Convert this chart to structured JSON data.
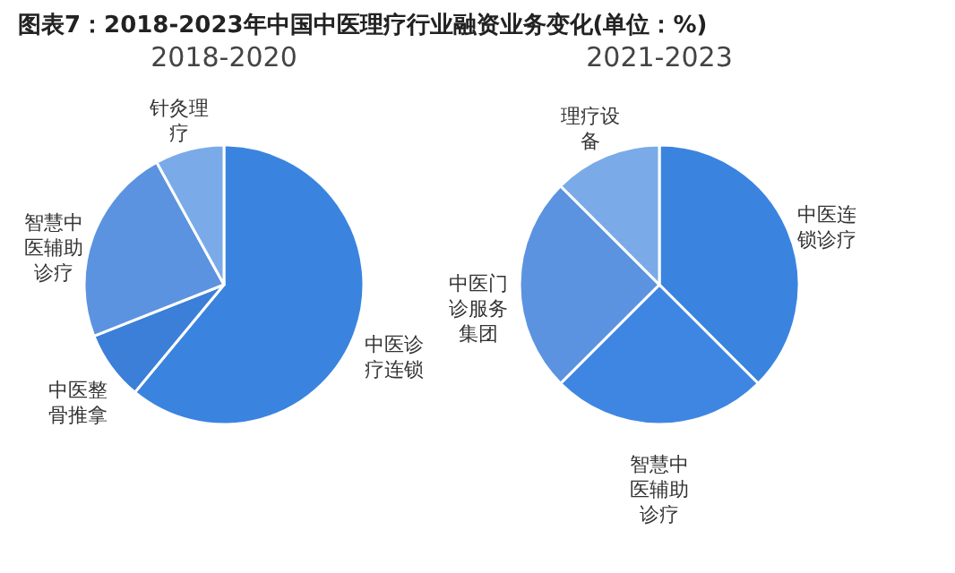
{
  "chart_data": [
    {
      "type": "pie",
      "title": "图表7：2018-2023年中国中医理疗行业融资业务变化(单位：%)",
      "subtitle": "2018-2020",
      "categories": [
        "中医诊疗连锁",
        "中医整骨推拿",
        "智慧中医辅助诊疗",
        "针灸理疗"
      ],
      "values": [
        61,
        8,
        23,
        8
      ],
      "colors": [
        "#3a84e0",
        "#3b7fd8",
        "#5b93e0",
        "#7aaae8"
      ],
      "legend": false
    },
    {
      "type": "pie",
      "subtitle": "2021-2023",
      "categories": [
        "中医连锁诊疗",
        "智慧中医辅助诊疗",
        "中医门诊服务集团",
        "理疗设备"
      ],
      "values": [
        37.5,
        25,
        25,
        12.5
      ],
      "colors": [
        "#3a84e0",
        "#3f86e2",
        "#5b93e0",
        "#7aaae8"
      ],
      "legend": false
    }
  ]
}
